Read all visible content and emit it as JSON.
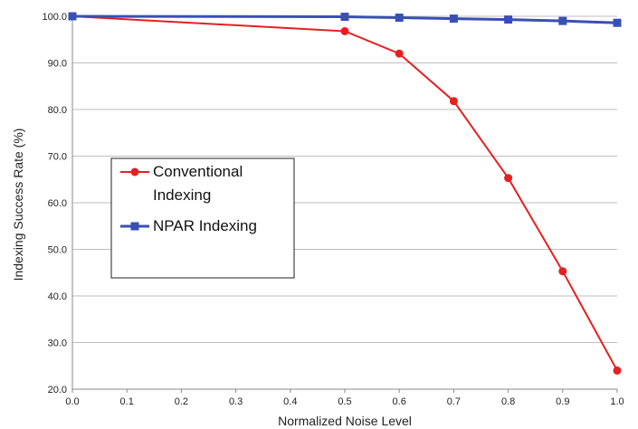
{
  "chart_data": {
    "type": "line",
    "xlabel": "Normalized Noise Level",
    "ylabel": "Indexing Success Rate (%)",
    "x": [
      0.0,
      0.5,
      0.6,
      0.7,
      0.8,
      0.9,
      1.0
    ],
    "xlim": [
      0.0,
      1.0
    ],
    "ylim": [
      20.0,
      100.0
    ],
    "x_ticks": [
      "0.0",
      "0.1",
      "0.2",
      "0.3",
      "0.4",
      "0.5",
      "0.6",
      "0.7",
      "0.8",
      "0.9",
      "1.0"
    ],
    "y_ticks": [
      "20.0",
      "30.0",
      "40.0",
      "50.0",
      "60.0",
      "70.0",
      "80.0",
      "90.0",
      "100.0"
    ],
    "grid": "horizontal",
    "legend_position": "center-left",
    "series": [
      {
        "name": "Conventional Indexing",
        "legend_lines": [
          "Conventional",
          "Indexing"
        ],
        "color": "#e52020",
        "marker": "circle",
        "values": [
          100.0,
          96.8,
          92.0,
          81.8,
          65.3,
          45.3,
          24.0
        ]
      },
      {
        "name": "NPAR Indexing",
        "legend_lines": [
          "NPAR Indexing"
        ],
        "color": "#3a4fb5",
        "marker": "square",
        "values": [
          100.0,
          99.9,
          99.7,
          99.5,
          99.3,
          99.0,
          98.6
        ]
      }
    ]
  }
}
